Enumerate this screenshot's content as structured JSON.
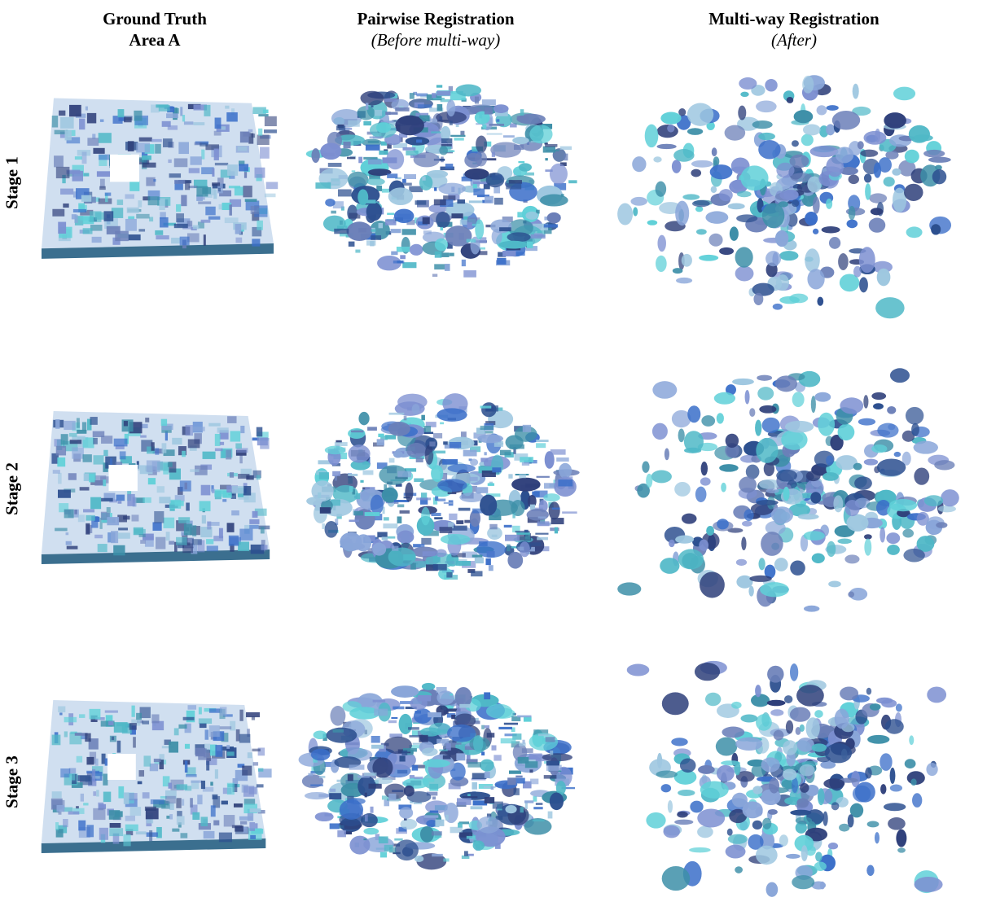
{
  "columns": [
    {
      "title": "Ground Truth",
      "subtitle": "Area A"
    },
    {
      "title": "Pairwise Registration",
      "subtitle": "(Before multi-way)"
    },
    {
      "title": "Multi-way Registration",
      "subtitle": "(After)"
    }
  ],
  "rows": [
    {
      "label": "Stage 1"
    },
    {
      "label": "Stage 2"
    },
    {
      "label": "Stage 3"
    }
  ],
  "palette": [
    "#3b6fc9",
    "#4fb8c7",
    "#7c8fd1",
    "#2c4f8f",
    "#5fd0d8",
    "#8aa6d9",
    "#2e3f7a",
    "#6b7fb8",
    "#9ec7e0",
    "#3d8fa8"
  ]
}
